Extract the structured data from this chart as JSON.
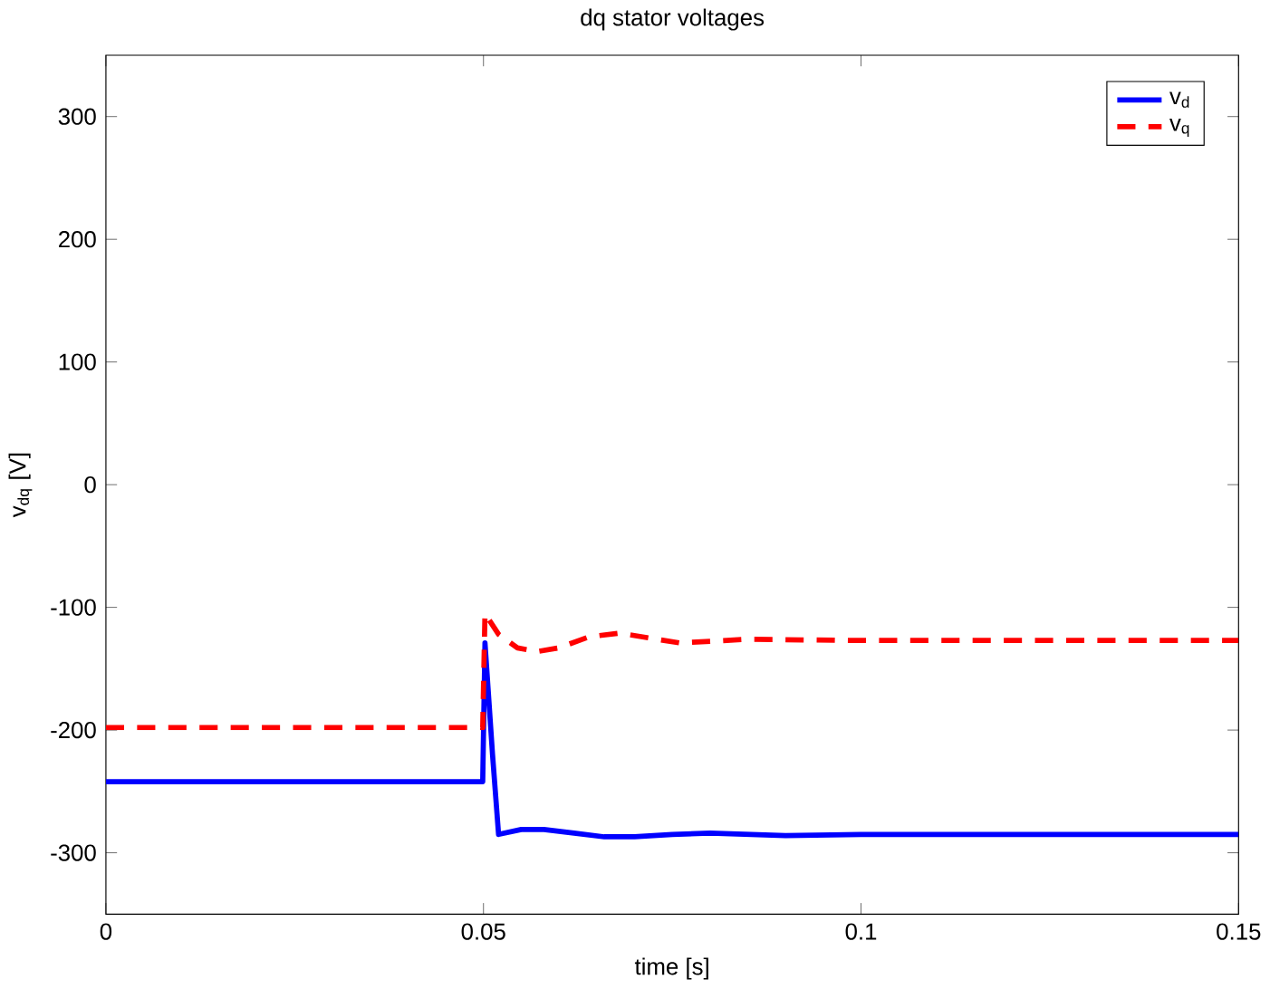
{
  "chart_data": {
    "type": "line",
    "title": "dq stator voltages",
    "xlabel": "time [s]",
    "ylabel": "v$_{dq}$ [V]",
    "xlim": [
      0,
      0.15
    ],
    "ylim": [
      -350,
      350
    ],
    "xticks": [
      0,
      0.05,
      0.1,
      0.15
    ],
    "yticks": [
      -300,
      -200,
      -100,
      0,
      100,
      200,
      300
    ],
    "grid": false,
    "legend": "top right",
    "series": [
      {
        "name": "v$_{d}$",
        "color": "#0000ff",
        "line_style": "solid",
        "x": [
          0,
          0.0499,
          0.0502,
          0.0512,
          0.052,
          0.055,
          0.058,
          0.062,
          0.066,
          0.07,
          0.075,
          0.08,
          0.09,
          0.1,
          0.12,
          0.15
        ],
        "values": [
          -242,
          -242,
          -129,
          -220,
          -285,
          -281,
          -281,
          -284,
          -287,
          -287,
          -285,
          -284,
          -286,
          -285,
          -285,
          -285
        ]
      },
      {
        "name": "v$_{q}$",
        "color": "#ff0000",
        "line_style": "dashed",
        "x": [
          0,
          0.0499,
          0.0502,
          0.052,
          0.0545,
          0.0571,
          0.06,
          0.064,
          0.068,
          0.072,
          0.076,
          0.085,
          0.1,
          0.12,
          0.15
        ],
        "values": [
          -198,
          -198,
          -105,
          -122,
          -133,
          -136,
          -133,
          -124,
          -121,
          -125,
          -129,
          -126,
          -127,
          -127,
          -127
        ]
      }
    ]
  }
}
